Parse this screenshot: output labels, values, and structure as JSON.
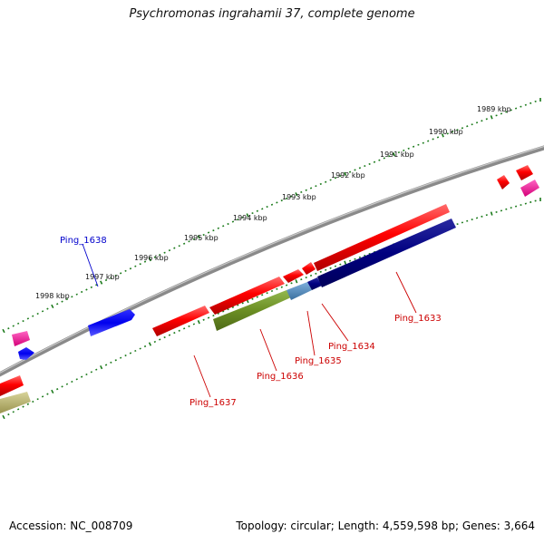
{
  "title": "Psychromonas ingrahamii 37, complete genome",
  "accession": "Accession: NC_008709",
  "summary": "Topology: circular; Length: 4,559,598 bp; Genes: 3,664",
  "colors": {
    "backbone": "#808080",
    "ticks": "#1a7a1a",
    "gene_red": "#ff0000",
    "gene_blue": "#0000ff",
    "gene_navy": "#000080",
    "gene_olive": "#6b8e23",
    "gene_steel": "#4682b4",
    "gene_pink": "#ff1493",
    "gene_khaki": "#bdb76b",
    "label_red": "#cc0000",
    "label_blue": "#0000cc"
  },
  "kbp_labels": [
    "1989 kbp",
    "1990 kbp",
    "1991 kbp",
    "1992 kbp",
    "1993 kbp",
    "1994 kbp",
    "1995 kbp",
    "1996 kbp",
    "1997 kbp",
    "1998 kbp"
  ],
  "gene_labels": [
    "Ping_1638",
    "Ping_1637",
    "Ping_1636",
    "Ping_1635",
    "Ping_1634",
    "Ping_1633"
  ]
}
